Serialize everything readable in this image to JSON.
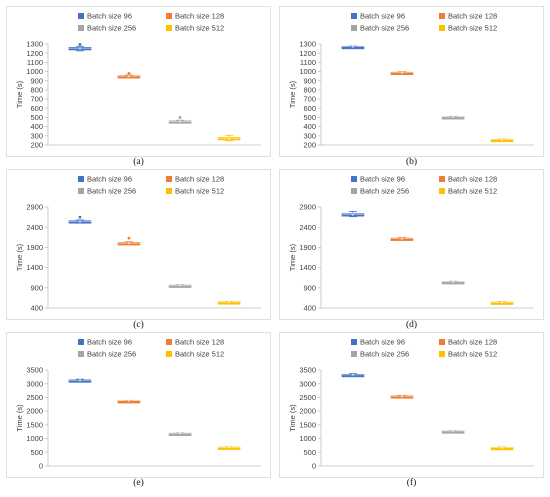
{
  "colors": {
    "batch96": "#4472c4",
    "batch128": "#ed7d31",
    "batch256": "#a5a5a5",
    "batch512": "#ffc000",
    "axis": "#bfbfbf",
    "frame": "#d9d9d9",
    "text": "#404040"
  },
  "legend": [
    "Batch size 96",
    "Batch size 128",
    "Batch size 256",
    "Batch size 512"
  ],
  "chart_data": [
    {
      "type": "box",
      "caption": "(a)",
      "ylabel": "Time (s)",
      "grid": false,
      "legend_position": "top",
      "ylim": [
        200,
        1300
      ],
      "yticks": [
        200,
        300,
        400,
        500,
        600,
        700,
        800,
        900,
        1000,
        1100,
        1200,
        1300
      ],
      "series": [
        {
          "name": "Batch size 96",
          "min": 1225,
          "q1": 1240,
          "median": 1250,
          "q3": 1262,
          "max": 1275,
          "outliers": [
            1295
          ]
        },
        {
          "name": "Batch size 128",
          "min": 938,
          "q1": 945,
          "median": 950,
          "q3": 955,
          "max": 962,
          "outliers": [
            980
          ]
        },
        {
          "name": "Batch size 256",
          "min": 445,
          "q1": 452,
          "median": 457,
          "q3": 463,
          "max": 470,
          "outliers": [
            500
          ]
        },
        {
          "name": "Batch size 512",
          "min": 245,
          "q1": 258,
          "median": 268,
          "q3": 282,
          "max": 305,
          "outliers": []
        }
      ]
    },
    {
      "type": "box",
      "caption": "(b)",
      "ylabel": "Time (s)",
      "grid": false,
      "legend_position": "top",
      "ylim": [
        200,
        1300
      ],
      "yticks": [
        200,
        300,
        400,
        500,
        600,
        700,
        800,
        900,
        1000,
        1100,
        1200,
        1300
      ],
      "series": [
        {
          "name": "Batch size 96",
          "min": 1262,
          "q1": 1266,
          "median": 1270,
          "q3": 1274,
          "max": 1278,
          "outliers": []
        },
        {
          "name": "Batch size 128",
          "min": 978,
          "q1": 982,
          "median": 988,
          "q3": 993,
          "max": 998,
          "outliers": []
        },
        {
          "name": "Batch size 256",
          "min": 500,
          "q1": 503,
          "median": 506,
          "q3": 509,
          "max": 513,
          "outliers": []
        },
        {
          "name": "Batch size 512",
          "min": 252,
          "q1": 256,
          "median": 259,
          "q3": 262,
          "max": 266,
          "outliers": []
        }
      ]
    },
    {
      "type": "box",
      "caption": "(c)",
      "ylabel": "Time (s)",
      "grid": false,
      "legend_position": "top",
      "ylim": [
        400,
        2900
      ],
      "yticks": [
        400,
        900,
        1400,
        1900,
        2400,
        2900
      ],
      "series": [
        {
          "name": "Batch size 96",
          "min": 2500,
          "q1": 2525,
          "median": 2540,
          "q3": 2560,
          "max": 2580,
          "outliers": [
            2650
          ]
        },
        {
          "name": "Batch size 128",
          "min": 1975,
          "q1": 1990,
          "median": 2005,
          "q3": 2020,
          "max": 2040,
          "outliers": [
            2130
          ]
        },
        {
          "name": "Batch size 256",
          "min": 945,
          "q1": 955,
          "median": 960,
          "q3": 968,
          "max": 978,
          "outliers": []
        },
        {
          "name": "Batch size 512",
          "min": 530,
          "q1": 540,
          "median": 548,
          "q3": 556,
          "max": 565,
          "outliers": []
        }
      ]
    },
    {
      "type": "box",
      "caption": "(d)",
      "ylabel": "Time (s)",
      "grid": false,
      "legend_position": "top",
      "ylim": [
        400,
        2900
      ],
      "yticks": [
        400,
        900,
        1400,
        1900,
        2400,
        2900
      ],
      "series": [
        {
          "name": "Batch size 96",
          "min": 2660,
          "q1": 2690,
          "median": 2710,
          "q3": 2735,
          "max": 2790,
          "outliers": []
        },
        {
          "name": "Batch size 128",
          "min": 2100,
          "q1": 2110,
          "median": 2120,
          "q3": 2130,
          "max": 2145,
          "outliers": []
        },
        {
          "name": "Batch size 256",
          "min": 1030,
          "q1": 1040,
          "median": 1047,
          "q3": 1055,
          "max": 1065,
          "outliers": []
        },
        {
          "name": "Batch size 512",
          "min": 525,
          "q1": 535,
          "median": 540,
          "q3": 548,
          "max": 560,
          "outliers": []
        }
      ]
    },
    {
      "type": "box",
      "caption": "(e)",
      "ylabel": "Time (s)",
      "grid": false,
      "legend_position": "top",
      "ylim": [
        0,
        3500
      ],
      "yticks": [
        0,
        500,
        1000,
        1500,
        2000,
        2500,
        3000,
        3500
      ],
      "series": [
        {
          "name": "Batch size 96",
          "min": 3090,
          "q1": 3110,
          "median": 3125,
          "q3": 3140,
          "max": 3165,
          "outliers": []
        },
        {
          "name": "Batch size 128",
          "min": 2360,
          "q1": 2370,
          "median": 2378,
          "q3": 2385,
          "max": 2395,
          "outliers": []
        },
        {
          "name": "Batch size 256",
          "min": 1180,
          "q1": 1188,
          "median": 1193,
          "q3": 1198,
          "max": 1206,
          "outliers": []
        },
        {
          "name": "Batch size 512",
          "min": 665,
          "q1": 675,
          "median": 683,
          "q3": 690,
          "max": 700,
          "outliers": []
        }
      ]
    },
    {
      "type": "box",
      "caption": "(f)",
      "ylabel": "Time (s)",
      "grid": false,
      "legend_position": "top",
      "ylim": [
        0,
        3500
      ],
      "yticks": [
        0,
        500,
        1000,
        1500,
        2000,
        2500,
        3000,
        3500
      ],
      "series": [
        {
          "name": "Batch size 96",
          "min": 3285,
          "q1": 3305,
          "median": 3320,
          "q3": 3340,
          "max": 3370,
          "outliers": []
        },
        {
          "name": "Batch size 128",
          "min": 2520,
          "q1": 2535,
          "median": 2545,
          "q3": 2560,
          "max": 2575,
          "outliers": []
        },
        {
          "name": "Batch size 256",
          "min": 1260,
          "q1": 1268,
          "median": 1275,
          "q3": 1282,
          "max": 1290,
          "outliers": []
        },
        {
          "name": "Batch size 512",
          "min": 650,
          "q1": 660,
          "median": 668,
          "q3": 678,
          "max": 700,
          "outliers": []
        }
      ]
    }
  ]
}
